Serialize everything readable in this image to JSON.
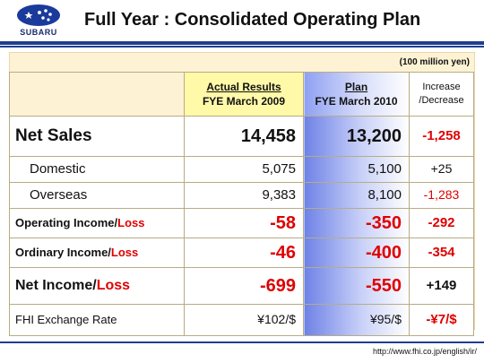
{
  "header": {
    "logo_text": "SUBARU",
    "title": "Full Year : Consolidated Operating Plan"
  },
  "unit": "(100 million yen)",
  "columns": {
    "actual_top": "Actual Results",
    "actual_bottom": "FYE March 2009",
    "plan_top": "Plan",
    "plan_bottom": "FYE March 2010",
    "inc_top": "Increase",
    "inc_bottom": "/Decrease"
  },
  "rows": [
    {
      "label": "Net Sales",
      "actual": "14,458",
      "plan": "13,200",
      "change": "-1,258"
    },
    {
      "label": "Domestic",
      "actual": "5,075",
      "plan": "5,100",
      "change": "+25"
    },
    {
      "label": "Overseas",
      "actual": "9,383",
      "plan": "8,100",
      "change": "-1,283"
    },
    {
      "label_main": "Operating Income/",
      "label_loss": "Loss",
      "actual": "-58",
      "plan": "-350",
      "change": "-292"
    },
    {
      "label_main": "Ordinary Income/",
      "label_loss": "Loss",
      "actual": "-46",
      "plan": "-400",
      "change": "-354"
    },
    {
      "label_main": "Net Income/",
      "label_loss": "Loss",
      "actual": "-699",
      "plan": "-550",
      "change": "+149"
    },
    {
      "label": "FHI Exchange Rate",
      "actual": "¥102/$",
      "plan": "¥95/$",
      "change": "-¥7/$"
    }
  ],
  "footer_url": "http://www.fhi.co.jp/english/ir/",
  "colors": {
    "brand_blue": "#1f3f8f",
    "loss_red": "#e00000",
    "actual_header_yellow": "#fff9a8",
    "panel_cream": "#fdf3d4"
  }
}
